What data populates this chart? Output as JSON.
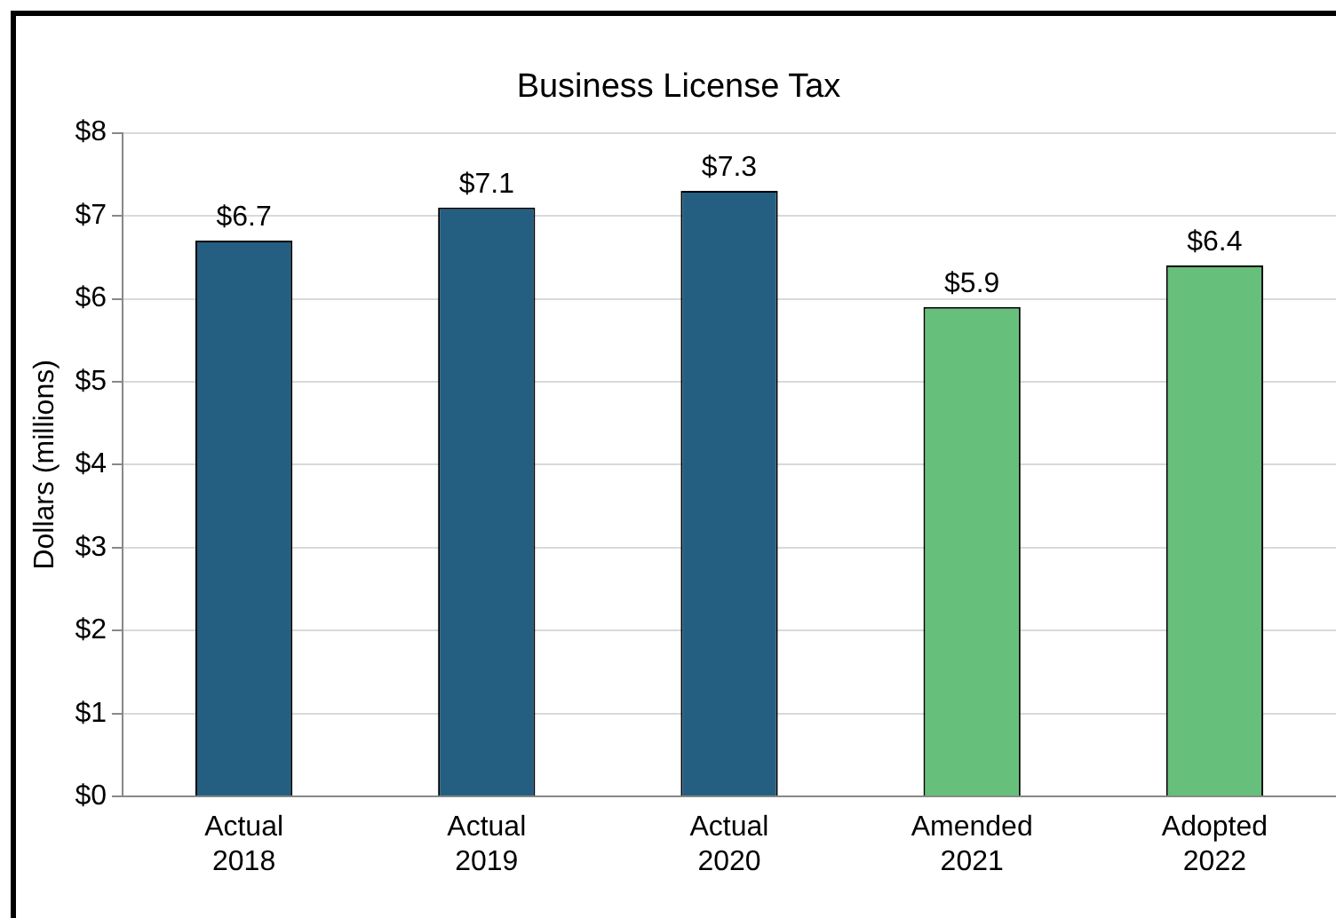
{
  "chart_data": {
    "type": "bar",
    "title": "Business License Tax",
    "ylabel": "Dollars (millions)",
    "categories": [
      "Actual 2018",
      "Actual 2019",
      "Actual 2020",
      "Amended 2021",
      "Adopted 2022"
    ],
    "values": [
      6.7,
      7.1,
      7.3,
      5.9,
      6.4
    ],
    "colors": [
      "#245f82",
      "#245f82",
      "#245f82",
      "#66bf7b",
      "#66bf7b"
    ],
    "value_labels": [
      "$6.7",
      "$7.1",
      "$7.3",
      "$5.9",
      "$6.4"
    ],
    "ylim": [
      0,
      8
    ],
    "yticks": [
      {
        "value": 0,
        "label": "$0"
      },
      {
        "value": 1,
        "label": "$1"
      },
      {
        "value": 2,
        "label": "$2"
      },
      {
        "value": 3,
        "label": "$3"
      },
      {
        "value": 4,
        "label": "$4"
      },
      {
        "value": 5,
        "label": "$5"
      },
      {
        "value": 6,
        "label": "$6"
      },
      {
        "value": 7,
        "label": "$7"
      },
      {
        "value": 8,
        "label": "$8"
      }
    ],
    "grid": "y",
    "legend": false
  }
}
